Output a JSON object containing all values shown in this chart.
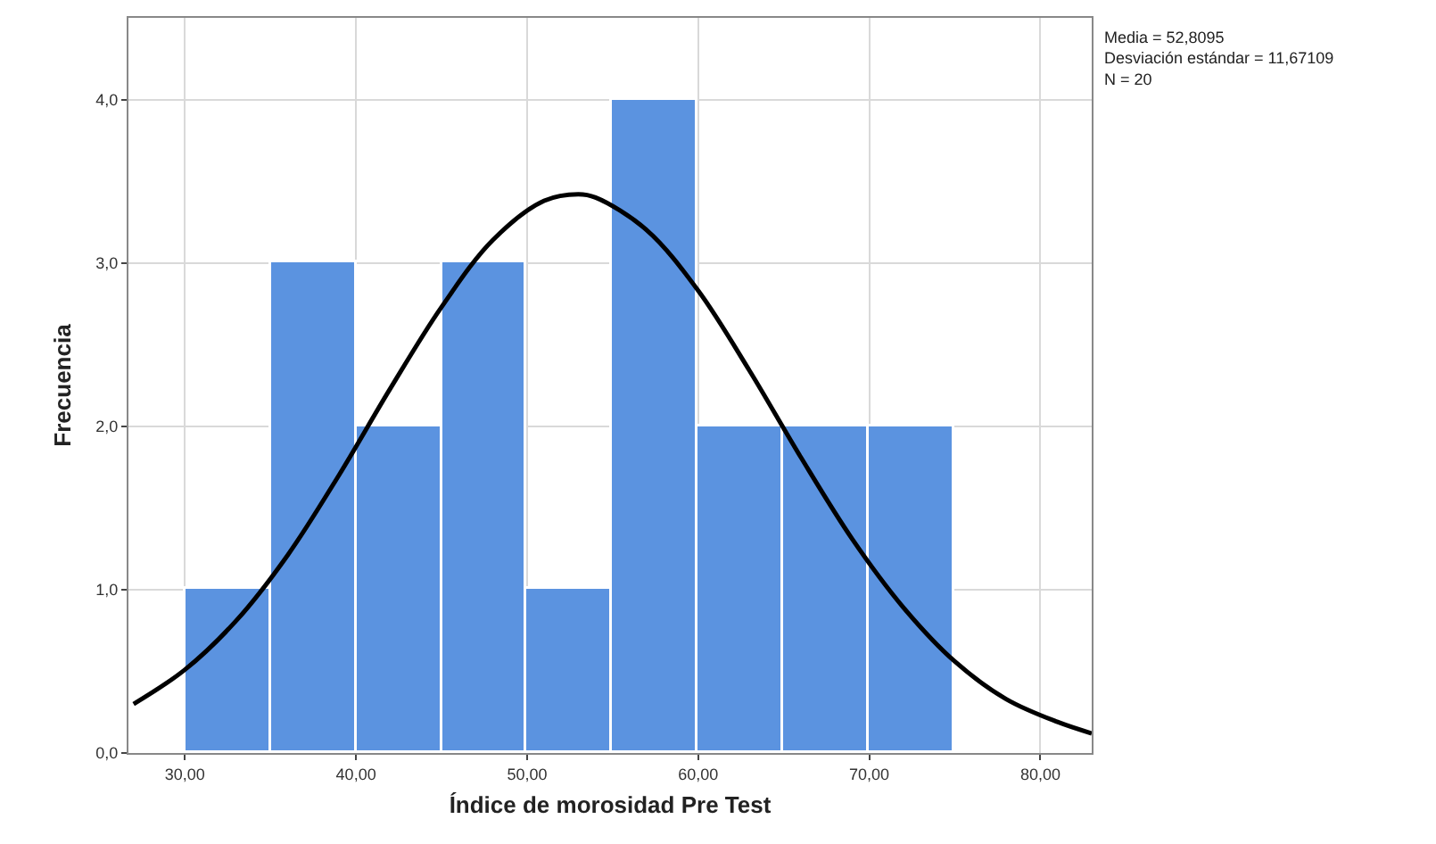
{
  "chart_data": {
    "type": "histogram",
    "xlabel": "Índice de morosidad Pre Test",
    "ylabel": "Frecuencia",
    "bins": [
      30,
      35,
      40,
      45,
      50,
      55,
      60,
      65,
      70,
      75
    ],
    "values": [
      1,
      3,
      2,
      3,
      1,
      4,
      2,
      2,
      2
    ],
    "color": "#5b93e0",
    "series": [
      {
        "type": "line",
        "color": "#000000",
        "x": [
          27,
          30,
          33,
          36,
          39,
          42,
          45,
          48,
          51,
          53,
          54,
          57,
          60,
          63,
          66,
          69,
          72,
          75,
          78,
          81,
          83
        ],
        "values": [
          0.3,
          0.51,
          0.81,
          1.21,
          1.7,
          2.23,
          2.73,
          3.14,
          3.38,
          3.42,
          3.4,
          3.2,
          2.83,
          2.34,
          1.81,
          1.31,
          0.89,
          0.56,
          0.33,
          0.19,
          0.12
        ]
      }
    ],
    "xlim": [
      26.7,
      83
    ],
    "ylim": [
      0,
      4.5
    ],
    "xticks": [
      {
        "value": 30,
        "label": "30,00"
      },
      {
        "value": 40,
        "label": "40,00"
      },
      {
        "value": 50,
        "label": "50,00"
      },
      {
        "value": 60,
        "label": "60,00"
      },
      {
        "value": 70,
        "label": "70,00"
      },
      {
        "value": 80,
        "label": "80,00"
      }
    ],
    "yticks": [
      {
        "value": 0,
        "label": "0,0"
      },
      {
        "value": 1,
        "label": "1,0"
      },
      {
        "value": 2,
        "label": "2,0"
      },
      {
        "value": 3,
        "label": "3,0"
      },
      {
        "value": 4,
        "label": "4,0"
      }
    ],
    "grid": true,
    "annotations": [
      "Media = 52,8095\nDesviación estándar = 11,67109\nN = 20"
    ]
  }
}
